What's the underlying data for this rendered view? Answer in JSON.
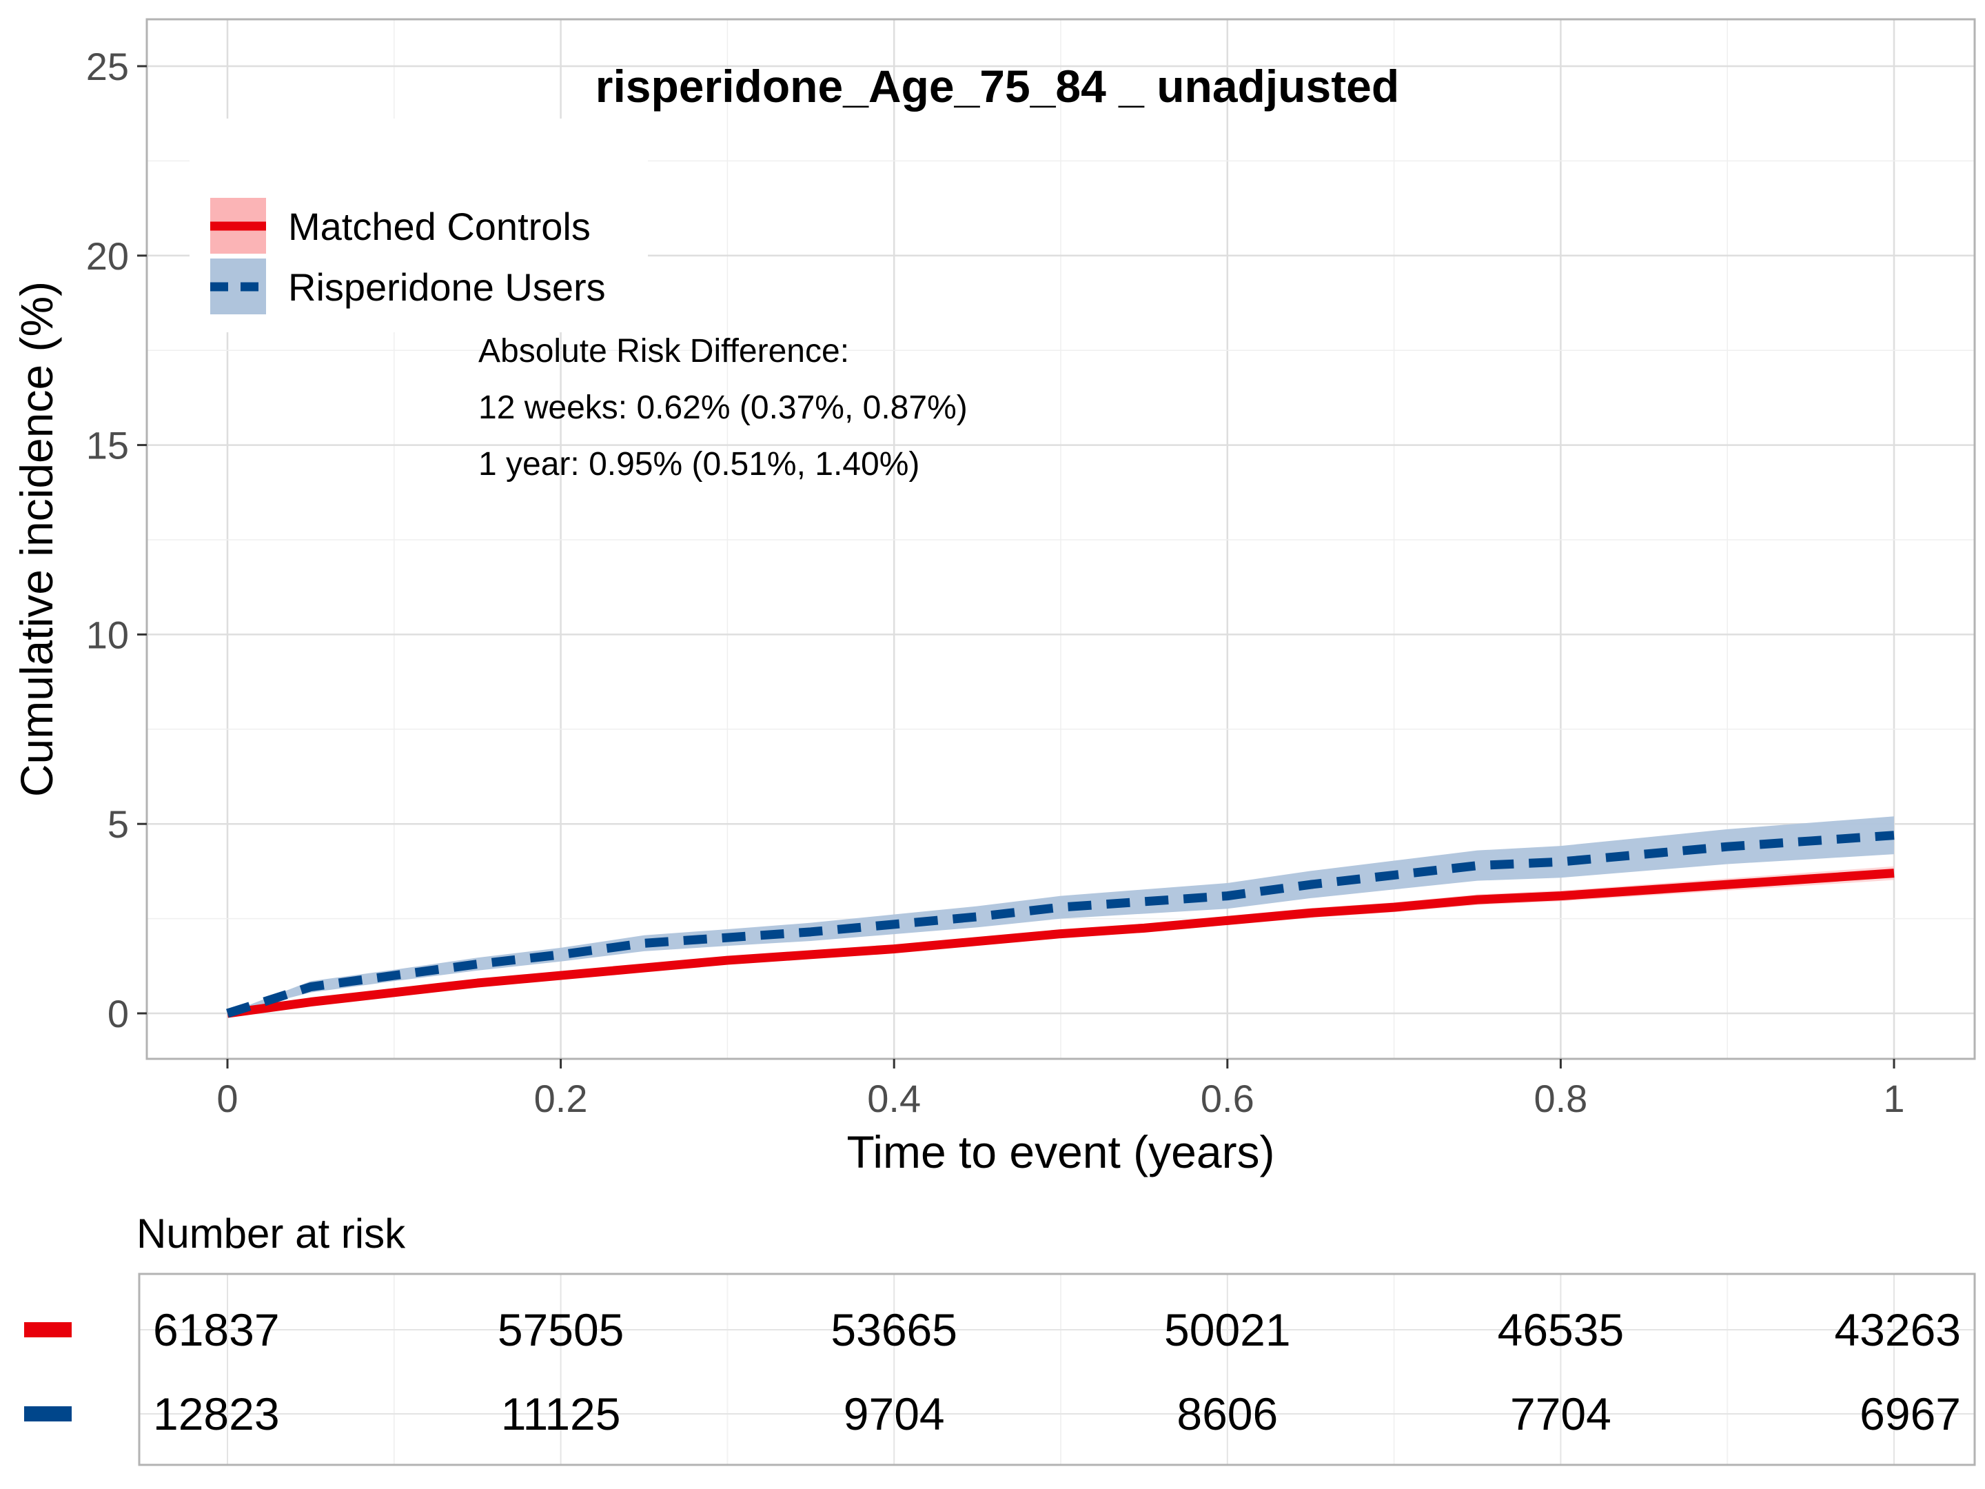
{
  "chart_data": {
    "type": "line",
    "title": "risperidone_Age_75_84 _ unadjusted",
    "xlabel": "Time to event (years)",
    "ylabel": "Cumulative incidence (%)",
    "xlim": [
      0,
      1
    ],
    "ylim": [
      0,
      25
    ],
    "x_ticks": [
      "0",
      "0.2",
      "0.4",
      "0.6",
      "0.8",
      "1"
    ],
    "y_ticks": [
      "0",
      "5",
      "10",
      "15",
      "20",
      "25"
    ],
    "grid": true,
    "legend_position": "top-left",
    "series": [
      {
        "name": "Matched Controls",
        "color": "#e8000b",
        "band_color": "#fbb4b6",
        "line_style": "solid",
        "x": [
          0,
          0.05,
          0.1,
          0.15,
          0.2,
          0.25,
          0.3,
          0.35,
          0.4,
          0.45,
          0.5,
          0.55,
          0.6,
          0.65,
          0.7,
          0.75,
          0.8,
          0.85,
          0.9,
          0.95,
          1.0
        ],
        "y": [
          0,
          0.3,
          0.55,
          0.8,
          1.0,
          1.2,
          1.4,
          1.55,
          1.7,
          1.9,
          2.1,
          2.25,
          2.45,
          2.65,
          2.8,
          3.0,
          3.1,
          3.25,
          3.4,
          3.55,
          3.7
        ],
        "lower": [
          0,
          0.25,
          0.5,
          0.72,
          0.92,
          1.12,
          1.32,
          1.47,
          1.61,
          1.8,
          2.0,
          2.14,
          2.33,
          2.52,
          2.67,
          2.86,
          2.96,
          3.1,
          3.24,
          3.38,
          3.52
        ],
        "upper": [
          0,
          0.35,
          0.6,
          0.88,
          1.08,
          1.28,
          1.48,
          1.63,
          1.79,
          2.0,
          2.2,
          2.36,
          2.57,
          2.78,
          2.93,
          3.14,
          3.24,
          3.4,
          3.56,
          3.72,
          3.88
        ]
      },
      {
        "name": "Risperidone Users",
        "color": "#00468b",
        "band_color": "#afc4dc",
        "line_style": "dashed",
        "x": [
          0,
          0.05,
          0.1,
          0.15,
          0.2,
          0.25,
          0.3,
          0.35,
          0.4,
          0.45,
          0.5,
          0.55,
          0.6,
          0.65,
          0.7,
          0.75,
          0.8,
          0.85,
          0.9,
          0.95,
          1.0
        ],
        "y": [
          0,
          0.7,
          1.0,
          1.3,
          1.55,
          1.85,
          2.0,
          2.15,
          2.35,
          2.55,
          2.8,
          2.95,
          3.1,
          3.4,
          3.65,
          3.9,
          4.0,
          4.2,
          4.4,
          4.55,
          4.7
        ],
        "lower": [
          0,
          0.55,
          0.85,
          1.13,
          1.37,
          1.64,
          1.78,
          1.91,
          2.09,
          2.27,
          2.5,
          2.63,
          2.76,
          3.04,
          3.27,
          3.5,
          3.58,
          3.76,
          3.94,
          4.07,
          4.2
        ],
        "upper": [
          0,
          0.85,
          1.15,
          1.47,
          1.73,
          2.06,
          2.22,
          2.39,
          2.61,
          2.83,
          3.1,
          3.27,
          3.44,
          3.76,
          4.03,
          4.3,
          4.42,
          4.64,
          4.86,
          5.03,
          5.2
        ]
      }
    ],
    "annotations": [
      "Absolute Risk Difference:",
      "12 weeks: 0.62% (0.37%, 0.87%)",
      "1 year: 0.95% (0.51%, 1.40%)"
    ],
    "risk_table": {
      "title": "Number at risk",
      "rows": [
        {
          "series": "Matched Controls",
          "color": "#e8000b",
          "values": [
            "61837",
            "57505",
            "53665",
            "50021",
            "46535",
            "43263"
          ]
        },
        {
          "series": "Risperidone Users",
          "color": "#00468b",
          "values": [
            "12823",
            "11125",
            "9704",
            "8606",
            "7704",
            "6967"
          ]
        }
      ]
    }
  }
}
